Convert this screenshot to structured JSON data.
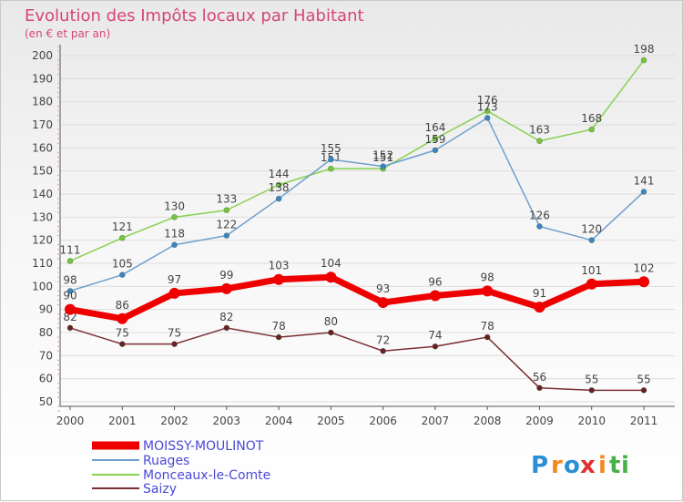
{
  "chart_data": {
    "type": "line",
    "title": "Evolution des Impôts locaux par Habitant",
    "subtitle": "(en € et par an)",
    "xlabel": "",
    "ylabel": "",
    "categories": [
      "2000",
      "2001",
      "2002",
      "2003",
      "2004",
      "2005",
      "2006",
      "2007",
      "2008",
      "2009",
      "2010",
      "2011"
    ],
    "ylim": [
      50,
      200
    ],
    "yticks": [
      50,
      60,
      70,
      80,
      90,
      100,
      110,
      120,
      130,
      140,
      150,
      160,
      170,
      180,
      190,
      200
    ],
    "grid": "horizontal",
    "legend_position": "bottom-left",
    "series": [
      {
        "name": "Monceaux-le-Comte",
        "color": "#88d150",
        "dot": "#77c23f",
        "width": 1.5,
        "values": [
          111,
          121,
          130,
          133,
          144,
          151,
          151,
          164,
          176,
          163,
          168,
          198
        ]
      },
      {
        "name": "Ruages",
        "color": "#6f9fce",
        "dot": "#3a83c9",
        "width": 1.5,
        "values": [
          98,
          105,
          118,
          122,
          138,
          155,
          152,
          159,
          173,
          126,
          120,
          141
        ]
      },
      {
        "name": "Saizy",
        "color": "#7a2e34",
        "dot": "#6a1f26",
        "width": 1.5,
        "values": [
          82,
          75,
          75,
          82,
          78,
          80,
          72,
          74,
          78,
          56,
          55,
          55
        ]
      },
      {
        "name": "MOISSY-MOULINOT",
        "color": "#ee0000",
        "dot": "#ee0000",
        "width": 7,
        "values": [
          90,
          86,
          97,
          99,
          103,
          104,
          93,
          96,
          98,
          91,
          101,
          102
        ]
      }
    ],
    "legend": [
      "MOISSY-MOULINOT",
      "Ruages",
      "Monceaux-le-Comte",
      "Saizy"
    ]
  },
  "brand": {
    "text": "Proxiti",
    "letters": [
      "P",
      "r",
      "o",
      "x",
      "i",
      "t",
      "i"
    ],
    "colors": [
      "#2a8fd6",
      "#f08a1c",
      "#2a8fd6",
      "#e03030",
      "#f08a1c",
      "#48b048",
      "#48b048"
    ]
  }
}
